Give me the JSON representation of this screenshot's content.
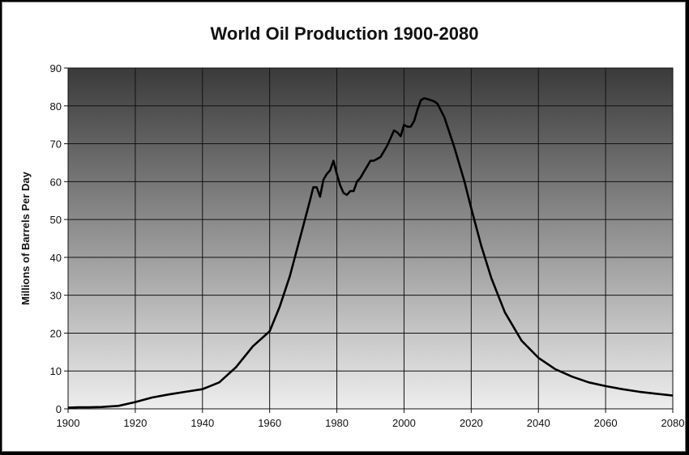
{
  "chart_data": {
    "type": "line",
    "title": "World Oil Production 1900-2080",
    "xlabel": "",
    "ylabel": "Millions of Barrels Per Day",
    "xlim": [
      1900,
      2080
    ],
    "ylim": [
      0,
      90
    ],
    "x_ticks": [
      1900,
      1920,
      1940,
      1960,
      1980,
      2000,
      2020,
      2040,
      2060,
      2080
    ],
    "y_ticks": [
      0,
      10,
      20,
      30,
      40,
      50,
      60,
      70,
      80,
      90
    ],
    "grid": true,
    "legend": "none",
    "colors": {
      "plot_top": "#3a3a3a",
      "plot_bottom": "#eeeeee",
      "line": "#000000",
      "grid": "#111111"
    },
    "series": [
      {
        "x": [
          1900,
          1903,
          1906,
          1910,
          1915,
          1920,
          1925,
          1930,
          1935,
          1940,
          1945,
          1950,
          1955,
          1960,
          1963,
          1966,
          1969,
          1972,
          1973,
          1974,
          1975,
          1976,
          1977,
          1978,
          1979,
          1980,
          1981,
          1982,
          1983,
          1984,
          1985,
          1986,
          1987,
          1988,
          1989,
          1990,
          1991,
          1992,
          1993,
          1994,
          1995,
          1996,
          1997,
          1998,
          1999,
          2000,
          2001,
          2002,
          2003,
          2004,
          2005,
          2006,
          2007,
          2008,
          2009,
          2010,
          2012,
          2015,
          2018,
          2020,
          2023,
          2026,
          2030,
          2035,
          2040,
          2045,
          2050,
          2055,
          2060,
          2065,
          2070,
          2075,
          2080
        ],
        "y": [
          0.3,
          0.4,
          0.4,
          0.5,
          0.8,
          1.8,
          3,
          3.8,
          4.5,
          5.2,
          7,
          11,
          16.5,
          20.5,
          27,
          35,
          45,
          55,
          58.5,
          58.5,
          56,
          60.5,
          62,
          63,
          65.5,
          62,
          59,
          57,
          56.5,
          57.5,
          57.5,
          60,
          61,
          62.5,
          64,
          65.5,
          65.5,
          66,
          66.5,
          68,
          69.5,
          71.5,
          73.5,
          73,
          72,
          75,
          74.5,
          74.5,
          76,
          79,
          81.5,
          82,
          81.8,
          81.5,
          81.2,
          80.5,
          77,
          69,
          60,
          53,
          43,
          34.5,
          25.5,
          18,
          13.5,
          10.5,
          8.5,
          7,
          6,
          5.2,
          4.5,
          4,
          3.5
        ]
      }
    ]
  }
}
